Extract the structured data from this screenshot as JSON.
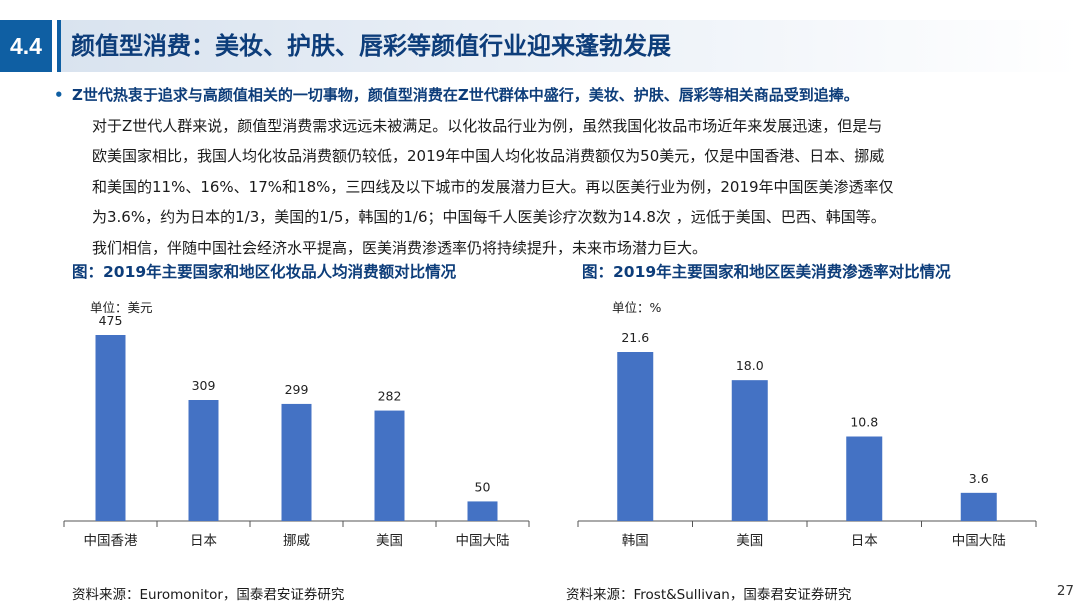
{
  "header": {
    "section_number": "4.4",
    "title": "颜值型消费：美妆、护肤、唇彩等颜值行业迎来蓬勃发展"
  },
  "body": {
    "bullet_highlight": "Z世代热衷于追求与高颜值相关的一切事物，颜值型消费在Z世代群体中盛行，美妆、护肤、唇彩等相关商品受到追捧。",
    "lines": [
      "对于Z世代人群来说，颜值型消费需求远远未被满足。以化妆品行业为例，虽然我国化妆品市场近年来发展迅速，但是与",
      "欧美国家相比，我国人均化妆品消费额仍较低，2019年中国人均化妆品消费额仅为50美元，仅是中国香港、日本、挪威",
      "和美国的11%、16%、17%和18%，三四线及以下城市的发展潜力巨大。再以医美行业为例，2019年中国医美渗透率仅",
      "为3.6%，约为日本的1/3，美国的1/5，韩国的1/6；中国每千人医美诊疗次数为14.8次 ，远低于美国、巴西、韩国等。",
      "我们相信，伴随中国社会经济水平提高，医美消费渗透率仍将持续提升，未来市场潜力巨大。"
    ]
  },
  "left_chart": {
    "title": "图：2019年主要国家和地区化妆品人均消费额对比情况",
    "unit": "单位：美元",
    "source": "资料来源：Euromonitor，国泰君安证券研究"
  },
  "right_chart": {
    "title": "图：2019年主要国家和地区医美消费渗透率对比情况",
    "unit": "单位：%",
    "source": "资料来源：Frost&Sullivan，国泰君安证券研究"
  },
  "page_number": "27",
  "colors": {
    "bar": "#4472c4",
    "brand": "#0f5fa3",
    "title_text": "#0d3d7a"
  },
  "chart_data": [
    {
      "type": "bar",
      "title": "图：2019年主要国家和地区化妆品人均消费额对比情况",
      "ylabel": "单位：美元",
      "categories": [
        "中国香港",
        "日本",
        "挪威",
        "美国",
        "中国大陆"
      ],
      "values": [
        475,
        309,
        299,
        282,
        50
      ],
      "value_labels": [
        "475",
        "309",
        "299",
        "282",
        "50"
      ],
      "ylim": [
        0,
        500
      ],
      "grid": false,
      "legend": "none"
    },
    {
      "type": "bar",
      "title": "图：2019年主要国家和地区医美消费渗透率对比情况",
      "ylabel": "单位：%",
      "categories": [
        "韩国",
        "美国",
        "日本",
        "中国大陆"
      ],
      "values": [
        21.6,
        18.0,
        10.8,
        3.6
      ],
      "value_labels": [
        "21.6",
        "18.0",
        "10.8",
        "3.6"
      ],
      "ylim": [
        0,
        24
      ],
      "grid": false,
      "legend": "none"
    }
  ]
}
